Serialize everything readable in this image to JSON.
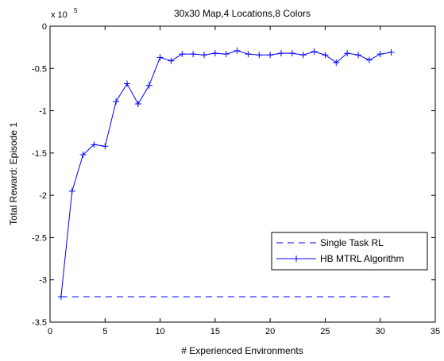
{
  "chart_data": {
    "type": "line",
    "title": "30x30 Map,4 Locations,8 Colors",
    "xlabel": "# Experienced Environments",
    "ylabel": "Total Reward: Episode 1",
    "y_exponent_label": "x 10",
    "y_exponent_power": "5",
    "xlim": [
      0,
      35
    ],
    "ylim": [
      -3.5,
      0
    ],
    "xticks": [
      0,
      5,
      10,
      15,
      20,
      25,
      30,
      35
    ],
    "xtick_labels": [
      "0",
      "5",
      "10",
      "15",
      "20",
      "25",
      "30",
      "35"
    ],
    "yticks": [
      0,
      -0.5,
      -1,
      -1.5,
      -2,
      -2.5,
      -3,
      -3.5
    ],
    "ytick_labels": [
      "0",
      "-0.5",
      "-1",
      "-1.5",
      "-2",
      "-2.5",
      "-3",
      "-3.5"
    ],
    "grid": false,
    "legend_position": "lower-right",
    "series": [
      {
        "name": "Single Task RL",
        "style": "dashed",
        "color": "#0000ff",
        "x": [
          1,
          31
        ],
        "y": [
          -3.2,
          -3.2
        ]
      },
      {
        "name": "HB MTRL Algorithm",
        "style": "solid-plus-markers",
        "color": "#0000ff",
        "x": [
          1,
          2,
          3,
          4,
          5,
          6,
          7,
          8,
          9,
          10,
          11,
          12,
          13,
          14,
          15,
          16,
          17,
          18,
          19,
          20,
          21,
          22,
          23,
          24,
          25,
          26,
          27,
          28,
          29,
          30,
          31
        ],
        "y": [
          -3.2,
          -1.95,
          -1.52,
          -1.4,
          -1.42,
          -0.89,
          -0.68,
          -0.92,
          -0.7,
          -0.37,
          -0.41,
          -0.33,
          -0.33,
          -0.34,
          -0.32,
          -0.33,
          -0.29,
          -0.33,
          -0.34,
          -0.34,
          -0.32,
          -0.32,
          -0.34,
          -0.3,
          -0.34,
          -0.43,
          -0.32,
          -0.34,
          -0.4,
          -0.33,
          -0.31
        ]
      }
    ]
  }
}
